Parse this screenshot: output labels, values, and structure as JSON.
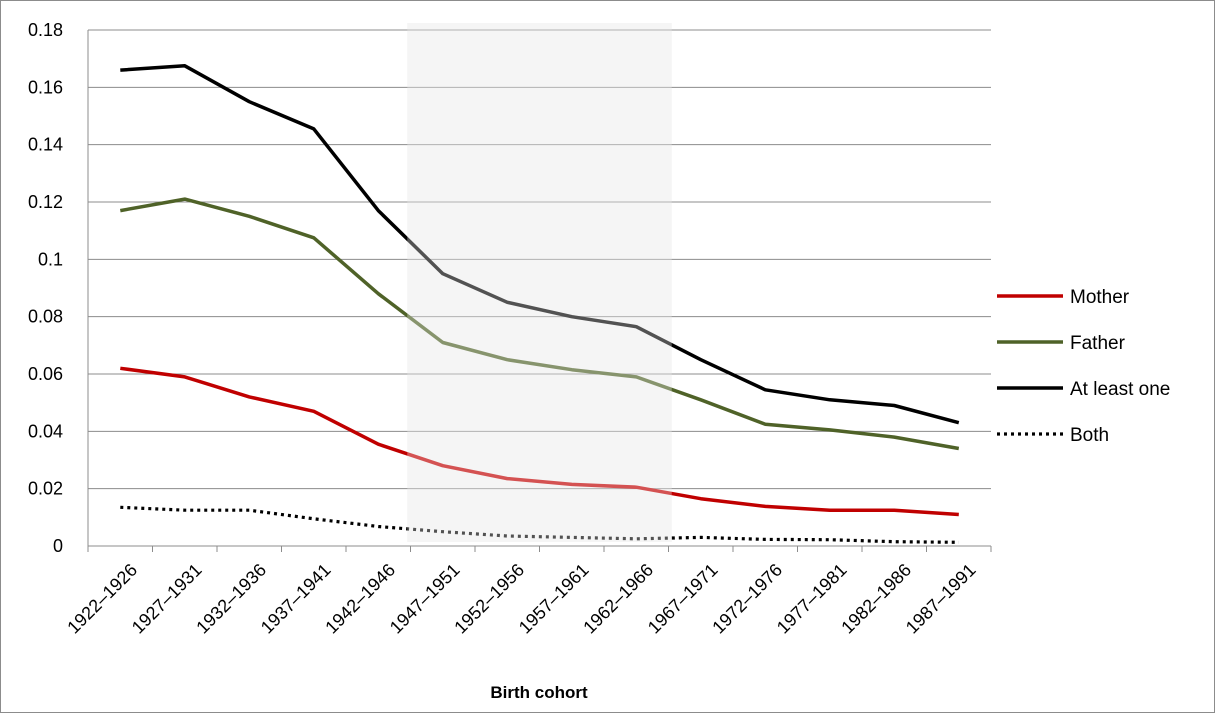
{
  "chart_data": {
    "type": "line",
    "title": "",
    "xlabel": "Birth cohort",
    "ylabel": "",
    "ylim": [
      0,
      0.18
    ],
    "yticks": [
      "0",
      "0.02",
      "0.04",
      "0.06",
      "0.08",
      "0.1",
      "0.12",
      "0.14",
      "0.16",
      "0.18"
    ],
    "grid": "horizontal",
    "legend_position": "right",
    "categories": [
      "1922–1926",
      "1927–1931",
      "1932–1936",
      "1937–1941",
      "1942–1946",
      "1947–1951",
      "1952–1956",
      "1957–1961",
      "1962–1966",
      "1967–1971",
      "1972–1976",
      "1977–1981",
      "1982–1986",
      "1987–1991"
    ],
    "highlight_band": {
      "from": "1947–1951",
      "to": "1962–1966",
      "color": "#f0f0f0"
    },
    "series": [
      {
        "name": "Mother",
        "color": "#c00000",
        "style": "solid",
        "values": [
          0.062,
          0.059,
          0.052,
          0.047,
          0.0355,
          0.028,
          0.0235,
          0.0215,
          0.0205,
          0.0165,
          0.0138,
          0.0125,
          0.0125,
          0.011
        ]
      },
      {
        "name": "Father",
        "color": "#4f6228",
        "style": "solid",
        "values": [
          0.117,
          0.121,
          0.115,
          0.1075,
          0.088,
          0.071,
          0.065,
          0.0615,
          0.059,
          0.051,
          0.0425,
          0.0405,
          0.038,
          0.034
        ]
      },
      {
        "name": "At least one",
        "color": "#000000",
        "style": "solid",
        "values": [
          0.166,
          0.1675,
          0.155,
          0.1455,
          0.117,
          0.095,
          0.085,
          0.08,
          0.0765,
          0.065,
          0.0545,
          0.051,
          0.049,
          0.043
        ]
      },
      {
        "name": "Both",
        "color": "#000000",
        "style": "dotted",
        "values": [
          0.0135,
          0.0125,
          0.0125,
          0.0095,
          0.0068,
          0.005,
          0.0035,
          0.003,
          0.0025,
          0.003,
          0.0023,
          0.0022,
          0.0015,
          0.0013
        ]
      }
    ]
  }
}
